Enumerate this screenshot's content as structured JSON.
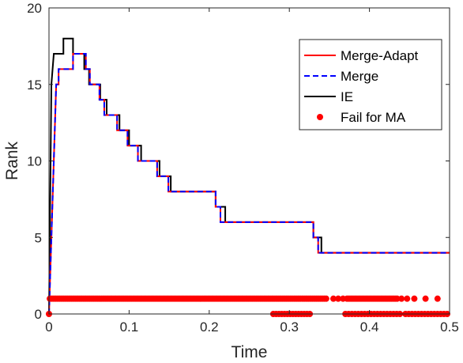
{
  "chart_data": {
    "type": "line",
    "title": "",
    "xlabel": "Time",
    "ylabel": "Rank",
    "xlim": [
      0,
      0.5
    ],
    "ylim": [
      0,
      20
    ],
    "xticks": [
      0,
      0.1,
      0.2,
      0.3,
      0.4,
      0.5
    ],
    "xtick_labels": [
      "0",
      "0.1",
      "0.2",
      "0.3",
      "0.4",
      "0.5"
    ],
    "yticks": [
      0,
      5,
      10,
      15,
      20
    ],
    "ytick_labels": [
      "0",
      "5",
      "10",
      "15",
      "20"
    ],
    "grid": false,
    "legend_position": "top-right",
    "series": [
      {
        "name": "Merge-Adapt",
        "style": "solid",
        "color": "#ff0000",
        "x": [
          0,
          0.003,
          0.006,
          0.009,
          0.012,
          0.03,
          0.043,
          0.046,
          0.048,
          0.051,
          0.06,
          0.063,
          0.066,
          0.069,
          0.079,
          0.085,
          0.091,
          0.098,
          0.111,
          0.135,
          0.14,
          0.149,
          0.204,
          0.208,
          0.214,
          0.32,
          0.33,
          0.336,
          0.5
        ],
        "y": [
          0,
          5,
          10,
          15,
          16,
          17,
          17,
          16,
          16,
          15,
          15,
          14,
          14,
          13,
          13,
          12,
          12,
          11,
          10,
          9,
          9,
          8,
          8,
          7,
          6,
          6,
          5,
          4,
          4
        ]
      },
      {
        "name": "Merge",
        "style": "dashed",
        "color": "#0000ff",
        "x": [
          0,
          0.003,
          0.006,
          0.009,
          0.012,
          0.03,
          0.043,
          0.046,
          0.048,
          0.051,
          0.06,
          0.063,
          0.066,
          0.069,
          0.079,
          0.085,
          0.091,
          0.098,
          0.111,
          0.135,
          0.14,
          0.149,
          0.204,
          0.208,
          0.214,
          0.32,
          0.33,
          0.336,
          0.5
        ],
        "y": [
          0,
          5,
          10,
          15,
          16,
          17,
          17,
          16,
          16,
          15,
          15,
          14,
          14,
          13,
          13,
          12,
          12,
          11,
          10,
          9,
          9,
          8,
          8,
          7,
          6,
          6,
          5,
          4,
          4
        ]
      },
      {
        "name": "IE",
        "style": "solid",
        "color": "#000000",
        "x": [
          0,
          0.003,
          0.006,
          0.018,
          0.03,
          0.044,
          0.05,
          0.064,
          0.072,
          0.088,
          0.1,
          0.115,
          0.138,
          0.152,
          0.208,
          0.22,
          0.33,
          0.34,
          0.372,
          0.5
        ],
        "y": [
          0,
          15,
          17,
          18,
          17,
          16,
          15,
          14,
          13,
          12,
          11,
          10,
          9,
          8,
          7,
          6,
          5,
          4,
          4,
          4
        ]
      },
      {
        "name": "Fail for MA",
        "style": "markers",
        "color": "#ff0000",
        "points": [
          [
            0,
            0
          ],
          [
            0.001,
            1
          ],
          [
            0.28,
            0
          ],
          [
            0.3,
            0
          ],
          [
            0.32,
            0
          ],
          [
            0.5,
            0
          ]
        ]
      }
    ]
  }
}
